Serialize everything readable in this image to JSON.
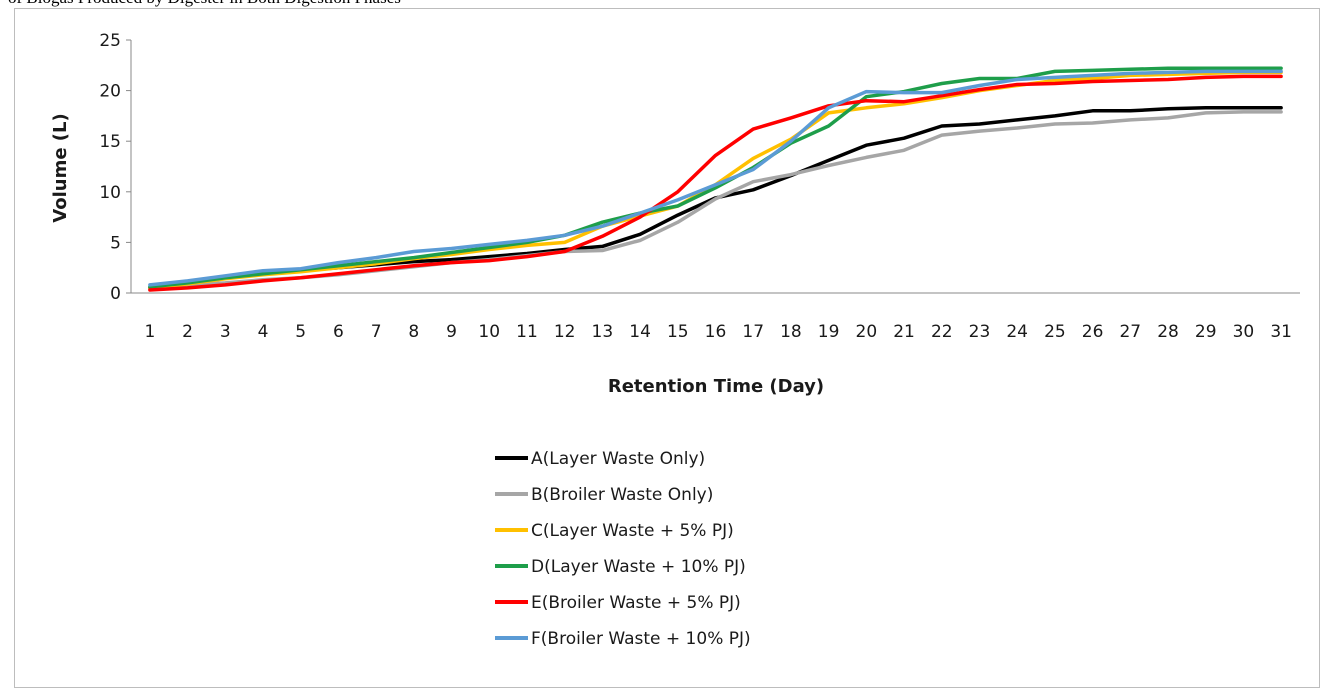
{
  "caption": "of Biogas Produced by Digester in Both Digestion Phases",
  "chart_data": {
    "type": "line",
    "title": "",
    "xlabel": "Retention Time (Day)",
    "ylabel": "Volume (L)",
    "ylim": [
      0,
      25
    ],
    "yticks": [
      0,
      5,
      10,
      15,
      20,
      25
    ],
    "grid": false,
    "legend_position": "bottom",
    "x": [
      1,
      2,
      3,
      4,
      5,
      6,
      7,
      8,
      9,
      10,
      11,
      12,
      13,
      14,
      15,
      16,
      17,
      18,
      19,
      20,
      21,
      22,
      23,
      24,
      25,
      26,
      27,
      28,
      29,
      30,
      31
    ],
    "series": [
      {
        "name": "A(Layer Waste Only)",
        "color": "#000000",
        "values": [
          0.5,
          1.0,
          1.5,
          1.9,
          2.2,
          2.5,
          2.8,
          3.1,
          3.3,
          3.6,
          3.9,
          4.3,
          4.6,
          5.8,
          7.7,
          9.4,
          10.2,
          11.6,
          13.1,
          14.6,
          15.3,
          16.5,
          16.7,
          17.1,
          17.5,
          18.0,
          18.0,
          18.2,
          18.3,
          18.3,
          18.3
        ]
      },
      {
        "name": "B(Broiler Waste Only)",
        "color": "#a6a6a6",
        "values": [
          0.4,
          0.8,
          1.0,
          1.3,
          1.5,
          1.8,
          2.2,
          2.6,
          3.0,
          3.3,
          3.7,
          4.1,
          4.2,
          5.2,
          7.0,
          9.3,
          11.0,
          11.7,
          12.6,
          13.4,
          14.1,
          15.6,
          16.0,
          16.3,
          16.7,
          16.8,
          17.1,
          17.3,
          17.8,
          17.9,
          17.9
        ]
      },
      {
        "name": "C(Layer Waste + 5% PJ)",
        "color": "#ffc000",
        "values": [
          0.5,
          0.9,
          1.4,
          1.8,
          2.1,
          2.5,
          2.9,
          3.4,
          3.8,
          4.3,
          4.7,
          5.0,
          6.6,
          7.6,
          8.6,
          10.7,
          13.3,
          15.2,
          17.8,
          18.3,
          18.7,
          19.3,
          20.0,
          20.5,
          21.0,
          21.2,
          21.5,
          21.6,
          21.7,
          21.8,
          21.8
        ]
      },
      {
        "name": "D(Layer Waste + 10% PJ)",
        "color": "#1e9e4a",
        "values": [
          0.6,
          1.0,
          1.5,
          1.9,
          2.3,
          2.7,
          3.1,
          3.5,
          4.0,
          4.5,
          5.0,
          5.7,
          7.0,
          7.9,
          8.6,
          10.4,
          12.4,
          14.8,
          16.5,
          19.4,
          19.9,
          20.7,
          21.2,
          21.2,
          21.9,
          22.0,
          22.1,
          22.2,
          22.2,
          22.2,
          22.2
        ]
      },
      {
        "name": "E(Broiler  Waste + 5% PJ)",
        "color": "#ff0000",
        "values": [
          0.3,
          0.5,
          0.8,
          1.2,
          1.5,
          1.9,
          2.3,
          2.7,
          3.0,
          3.2,
          3.6,
          4.1,
          5.6,
          7.5,
          10.0,
          13.6,
          16.2,
          17.3,
          18.5,
          19.0,
          18.9,
          19.5,
          20.1,
          20.6,
          20.7,
          20.9,
          21.0,
          21.1,
          21.3,
          21.4,
          21.4
        ]
      },
      {
        "name": "F(Broiler Waste + 10% PJ)",
        "color": "#5b9bd5",
        "values": [
          0.8,
          1.2,
          1.7,
          2.2,
          2.4,
          3.0,
          3.5,
          4.1,
          4.4,
          4.8,
          5.2,
          5.7,
          6.6,
          7.9,
          9.2,
          10.7,
          12.2,
          15.0,
          18.3,
          19.9,
          19.8,
          19.8,
          20.5,
          21.1,
          21.3,
          21.5,
          21.7,
          21.8,
          21.9,
          21.9,
          21.9
        ]
      }
    ]
  }
}
